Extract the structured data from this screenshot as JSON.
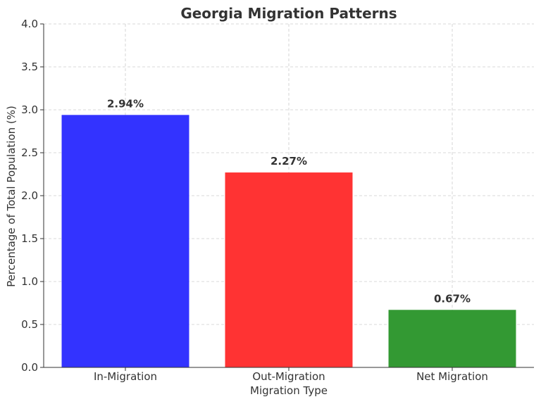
{
  "chart_data": {
    "type": "bar",
    "title": "Georgia Migration Patterns",
    "xlabel": "Migration Type",
    "ylabel": "Percentage of Total Population (%)",
    "categories": [
      "In-Migration",
      "Out-Migration",
      "Net Migration"
    ],
    "values": [
      2.94,
      2.27,
      0.67
    ],
    "value_labels": [
      "2.94%",
      "2.27%",
      "0.67%"
    ],
    "colors": [
      "#3333ff",
      "#ff3333",
      "#339933"
    ],
    "ylim": [
      0,
      4.0
    ],
    "yticks": [
      0.0,
      0.5,
      1.0,
      1.5,
      2.0,
      2.5,
      3.0,
      3.5,
      4.0
    ],
    "ytick_labels": [
      "0.0",
      "0.5",
      "1.0",
      "1.5",
      "2.0",
      "2.5",
      "3.0",
      "3.5",
      "4.0"
    ],
    "grid": true
  }
}
